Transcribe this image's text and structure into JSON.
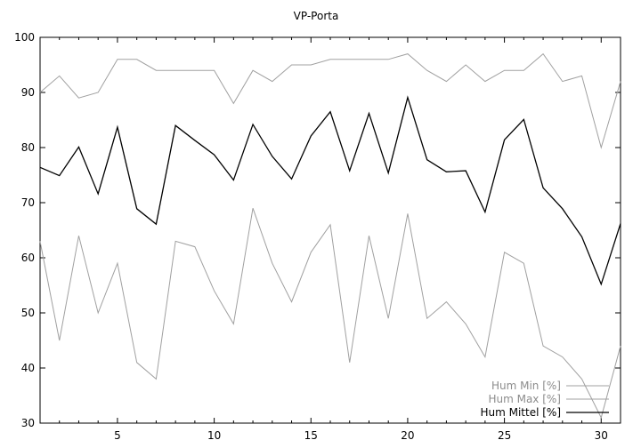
{
  "chart_data": {
    "type": "line",
    "title": "VP-Porta",
    "xlabel": "",
    "ylabel": "",
    "xlim": [
      1,
      31
    ],
    "ylim": [
      30,
      100
    ],
    "xticks": [
      5,
      10,
      15,
      20,
      25,
      30
    ],
    "yticks": [
      30,
      40,
      50,
      60,
      70,
      80,
      90,
      100
    ],
    "grid": false,
    "legend_position": "bottom-right",
    "x": [
      1,
      2,
      3,
      4,
      5,
      6,
      7,
      8,
      9,
      10,
      11,
      12,
      13,
      14,
      15,
      16,
      17,
      18,
      19,
      20,
      21,
      22,
      23,
      24,
      25,
      26,
      27,
      28,
      29,
      30,
      31
    ],
    "series": [
      {
        "name": "Hum Min [%]",
        "color": "#a0a0a0",
        "values": [
          63,
          45,
          64,
          50,
          59,
          41,
          38,
          63,
          62,
          54,
          48,
          69,
          59,
          52,
          61,
          66,
          41,
          64,
          49,
          68,
          49,
          52,
          48,
          42,
          61,
          59,
          44,
          42,
          38,
          31,
          44
        ]
      },
      {
        "name": "Hum Max [%]",
        "color": "#a0a0a0",
        "values": [
          90,
          93,
          89,
          90,
          96,
          96,
          94,
          94,
          94,
          94,
          88,
          94,
          92,
          95,
          95,
          96,
          96,
          96,
          96,
          97,
          94,
          92,
          95,
          92,
          94,
          94,
          97,
          92,
          93,
          80,
          92
        ]
      },
      {
        "name": "Hum Mittel [%]",
        "color": "#000000",
        "values": [
          76.4,
          74.9,
          80.1,
          71.6,
          83.7,
          68.9,
          66.1,
          84.0,
          81.3,
          78.7,
          74.1,
          84.2,
          78.4,
          74.3,
          82.1,
          86.5,
          75.8,
          86.2,
          75.4,
          89.1,
          77.8,
          75.6,
          75.8,
          68.3,
          81.4,
          85.1,
          72.7,
          68.9,
          63.8,
          55.2,
          66.2
        ]
      }
    ]
  }
}
